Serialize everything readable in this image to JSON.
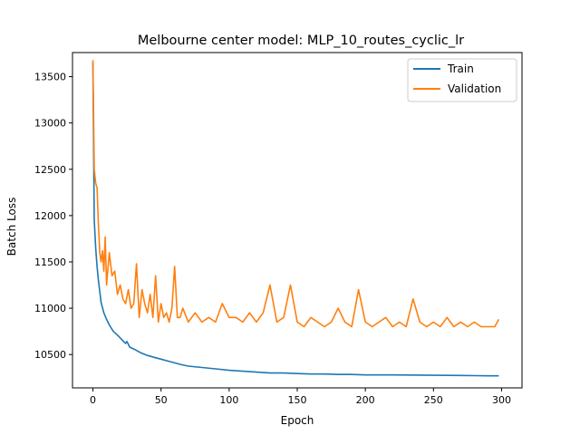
{
  "chart_data": {
    "type": "line",
    "title": "Melbourne center model:  MLP_10_routes_cyclic_lr",
    "xlabel": "Epoch",
    "ylabel": "Batch Loss",
    "xlim": [
      -15,
      315
    ],
    "ylim": [
      10140,
      13760
    ],
    "xticks": [
      0,
      50,
      100,
      150,
      200,
      250,
      300
    ],
    "yticks": [
      10500,
      11000,
      11500,
      12000,
      12500,
      13000,
      13500
    ],
    "grid": false,
    "legend_position": "top-right",
    "series": [
      {
        "name": "Train",
        "color": "#1f77b4",
        "points": [
          [
            0,
            13650
          ],
          [
            1,
            11950
          ],
          [
            2,
            11650
          ],
          [
            3,
            11450
          ],
          [
            4,
            11300
          ],
          [
            5,
            11180
          ],
          [
            6,
            11060
          ],
          [
            8,
            10950
          ],
          [
            10,
            10880
          ],
          [
            12,
            10820
          ],
          [
            15,
            10750
          ],
          [
            18,
            10710
          ],
          [
            20,
            10680
          ],
          [
            22,
            10650
          ],
          [
            24,
            10620
          ],
          [
            25,
            10640
          ],
          [
            27,
            10580
          ],
          [
            30,
            10560
          ],
          [
            35,
            10520
          ],
          [
            40,
            10490
          ],
          [
            45,
            10470
          ],
          [
            50,
            10450
          ],
          [
            55,
            10430
          ],
          [
            60,
            10410
          ],
          [
            65,
            10390
          ],
          [
            70,
            10375
          ],
          [
            80,
            10360
          ],
          [
            90,
            10345
          ],
          [
            100,
            10330
          ],
          [
            110,
            10320
          ],
          [
            120,
            10310
          ],
          [
            130,
            10300
          ],
          [
            140,
            10300
          ],
          [
            150,
            10295
          ],
          [
            160,
            10290
          ],
          [
            170,
            10290
          ],
          [
            180,
            10285
          ],
          [
            190,
            10285
          ],
          [
            200,
            10280
          ],
          [
            220,
            10280
          ],
          [
            240,
            10278
          ],
          [
            260,
            10275
          ],
          [
            280,
            10272
          ],
          [
            290,
            10270
          ],
          [
            298,
            10270
          ]
        ]
      },
      {
        "name": "Validation",
        "color": "#ff7f0e",
        "points": [
          [
            0,
            13680
          ],
          [
            1,
            12500
          ],
          [
            2,
            12350
          ],
          [
            3,
            12300
          ],
          [
            4,
            11900
          ],
          [
            5,
            11600
          ],
          [
            6,
            11500
          ],
          [
            7,
            11620
          ],
          [
            8,
            11400
          ],
          [
            9,
            11770
          ],
          [
            10,
            11250
          ],
          [
            12,
            11600
          ],
          [
            14,
            11350
          ],
          [
            16,
            11400
          ],
          [
            18,
            11150
          ],
          [
            20,
            11250
          ],
          [
            22,
            11100
          ],
          [
            24,
            11050
          ],
          [
            26,
            11200
          ],
          [
            28,
            11000
          ],
          [
            30,
            11050
          ],
          [
            32,
            11480
          ],
          [
            34,
            10900
          ],
          [
            36,
            11200
          ],
          [
            38,
            11050
          ],
          [
            40,
            10950
          ],
          [
            42,
            11150
          ],
          [
            44,
            10900
          ],
          [
            46,
            11350
          ],
          [
            48,
            10850
          ],
          [
            50,
            11050
          ],
          [
            52,
            10900
          ],
          [
            54,
            10950
          ],
          [
            56,
            10850
          ],
          [
            58,
            11000
          ],
          [
            60,
            11450
          ],
          [
            62,
            10900
          ],
          [
            64,
            10900
          ],
          [
            66,
            11000
          ],
          [
            70,
            10850
          ],
          [
            75,
            10950
          ],
          [
            80,
            10850
          ],
          [
            85,
            10900
          ],
          [
            90,
            10850
          ],
          [
            95,
            11050
          ],
          [
            100,
            10900
          ],
          [
            105,
            10900
          ],
          [
            110,
            10850
          ],
          [
            115,
            10950
          ],
          [
            120,
            10850
          ],
          [
            125,
            10950
          ],
          [
            130,
            11250
          ],
          [
            135,
            10850
          ],
          [
            140,
            10900
          ],
          [
            145,
            11250
          ],
          [
            150,
            10850
          ],
          [
            155,
            10800
          ],
          [
            160,
            10900
          ],
          [
            165,
            10850
          ],
          [
            170,
            10800
          ],
          [
            175,
            10850
          ],
          [
            180,
            11000
          ],
          [
            185,
            10850
          ],
          [
            190,
            10800
          ],
          [
            195,
            11200
          ],
          [
            200,
            10850
          ],
          [
            205,
            10800
          ],
          [
            210,
            10850
          ],
          [
            215,
            10900
          ],
          [
            220,
            10800
          ],
          [
            225,
            10850
          ],
          [
            230,
            10800
          ],
          [
            235,
            11100
          ],
          [
            240,
            10850
          ],
          [
            245,
            10800
          ],
          [
            250,
            10850
          ],
          [
            255,
            10800
          ],
          [
            260,
            10900
          ],
          [
            265,
            10800
          ],
          [
            270,
            10850
          ],
          [
            275,
            10800
          ],
          [
            280,
            10850
          ],
          [
            285,
            10800
          ],
          [
            290,
            10800
          ],
          [
            295,
            10800
          ],
          [
            298,
            10880
          ]
        ]
      }
    ]
  }
}
